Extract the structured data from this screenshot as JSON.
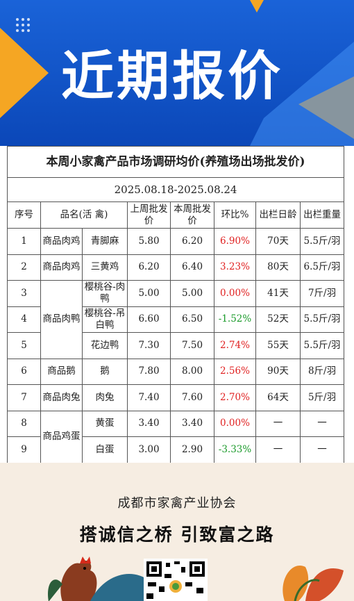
{
  "banner": {
    "title": "近期报价"
  },
  "table": {
    "title": "本周小家禽产品市场调研均价(养殖场出场批发价)",
    "date": "2025.08.18-2025.08.24",
    "headers": [
      "序号",
      "品名(活 禽)",
      "上周批发价",
      "本周批发价",
      "环比%",
      "出栏日龄",
      "出栏重量"
    ],
    "groups": [
      {
        "name": "商品肉鸡",
        "rows": [
          {
            "no": "1",
            "item": "青脚麻",
            "prev": "5.80",
            "curr": "6.20",
            "change": "6.90%",
            "age": "70天",
            "weight": "5.5斤/羽"
          }
        ]
      },
      {
        "name": "商品肉鸡",
        "rows": [
          {
            "no": "2",
            "item": "三黄鸡",
            "prev": "6.20",
            "curr": "6.40",
            "change": "3.23%",
            "age": "80天",
            "weight": "6.5斤/羽"
          }
        ]
      },
      {
        "name": "商品肉鸭",
        "rows": [
          {
            "no": "3",
            "item": "樱桃谷-肉 鸭",
            "prev": "5.00",
            "curr": "5.00",
            "change": "0.00%",
            "age": "41天",
            "weight": "7斤/羽"
          },
          {
            "no": "4",
            "item": "樱桃谷-吊白鸭",
            "prev": "6.60",
            "curr": "6.50",
            "change": "-1.52%",
            "age": "52天",
            "weight": "5.5斤/羽"
          },
          {
            "no": "5",
            "item": "花边鸭",
            "prev": "7.30",
            "curr": "7.50",
            "change": "2.74%",
            "age": "55天",
            "weight": "5.5斤/羽"
          }
        ]
      },
      {
        "name": "商品鹅",
        "rows": [
          {
            "no": "6",
            "item": "鹅",
            "prev": "7.80",
            "curr": "8.00",
            "change": "2.56%",
            "age": "90天",
            "weight": "8斤/羽"
          }
        ]
      },
      {
        "name": "商品肉兔",
        "rows": [
          {
            "no": "7",
            "item": "肉兔",
            "prev": "7.40",
            "curr": "7.60",
            "change": "2.70%",
            "age": "64天",
            "weight": "5斤/羽"
          }
        ]
      },
      {
        "name": "商品鸡蛋",
        "rows": [
          {
            "no": "8",
            "item": "黄蛋",
            "prev": "3.40",
            "curr": "3.40",
            "change": "0.00%",
            "age": "一",
            "weight": "一"
          },
          {
            "no": "9",
            "item": "白蛋",
            "prev": "3.00",
            "curr": "2.90",
            "change": "-3.33%",
            "age": "一",
            "weight": "一"
          }
        ]
      }
    ]
  },
  "footer": {
    "org": "成都市家禽产业协会",
    "slogan": "搭诚信之桥 引致富之路"
  }
}
